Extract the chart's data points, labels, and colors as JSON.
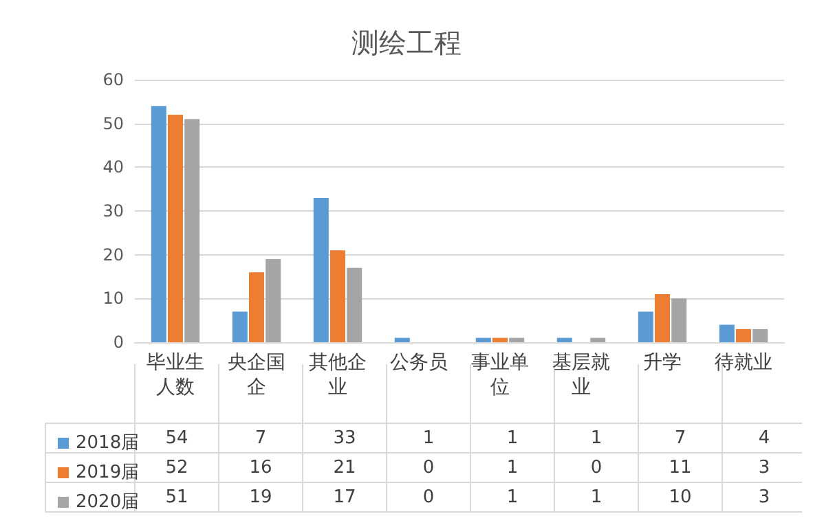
{
  "chart_data": {
    "type": "bar",
    "title": "测绘工程",
    "categories": [
      "毕业生人数",
      "央企国企",
      "其他企业",
      "公务员",
      "事业单位",
      "基层就业",
      "升学",
      "待就业"
    ],
    "series": [
      {
        "name": "2018届",
        "color": "#5b9bd5",
        "values": [
          54,
          7,
          33,
          1,
          1,
          1,
          7,
          4
        ]
      },
      {
        "name": "2019届",
        "color": "#ed7d31",
        "values": [
          52,
          16,
          21,
          0,
          1,
          0,
          11,
          3
        ]
      },
      {
        "name": "2020届",
        "color": "#a5a5a5",
        "values": [
          51,
          19,
          17,
          0,
          1,
          1,
          10,
          3
        ]
      }
    ],
    "ylim": [
      0,
      60
    ],
    "yticks": [
      0,
      10,
      20,
      30,
      40,
      50,
      60
    ],
    "grid": "y",
    "legend": "bottom",
    "data_labels": true
  }
}
